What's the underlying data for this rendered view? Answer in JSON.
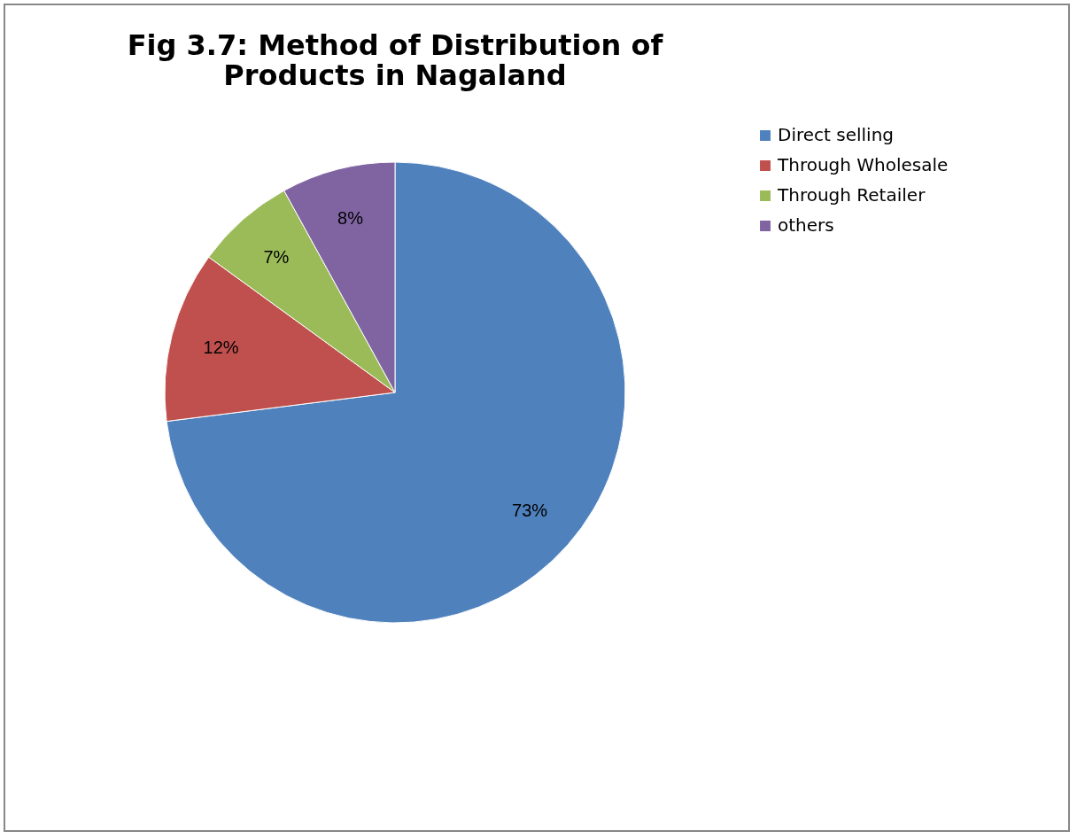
{
  "chart_data": {
    "type": "pie",
    "title": "Fig 3.7: Method of Distribution of Products in Nagaland",
    "categories": [
      "Direct selling",
      "Through Wholesale",
      "Through Retailer",
      "others"
    ],
    "values": [
      73,
      12,
      7,
      8
    ],
    "colors": [
      "#4f81bd",
      "#c0504d",
      "#9bbb59",
      "#8064a2"
    ],
    "value_labels": [
      "73%",
      "12%",
      "7%",
      "8%"
    ],
    "legend": "right"
  }
}
